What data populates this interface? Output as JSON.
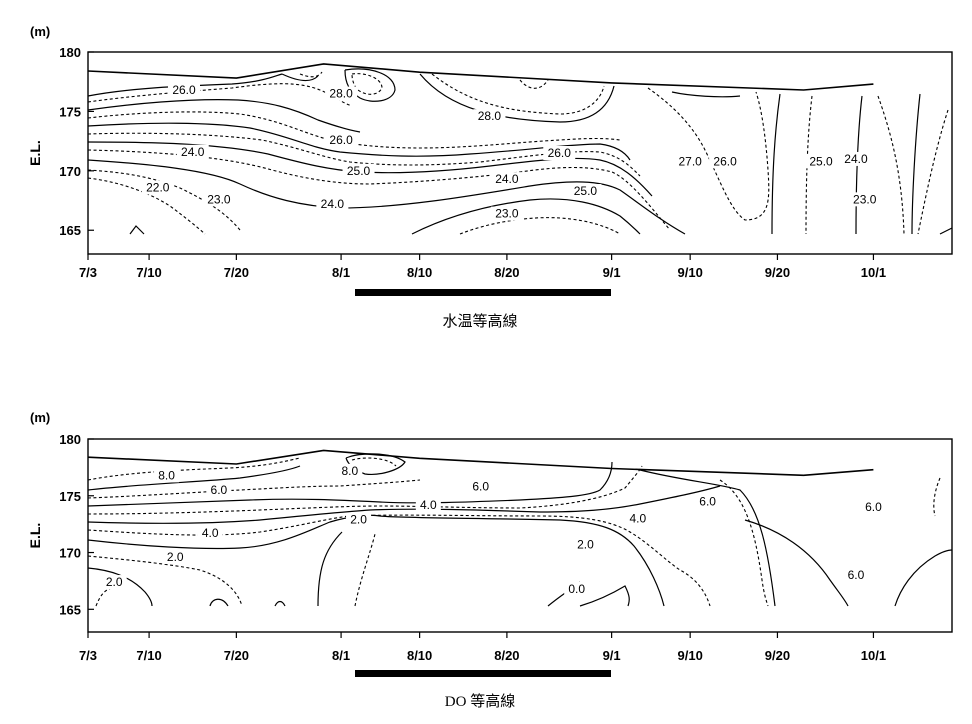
{
  "chart_data": [
    {
      "type": "contour",
      "title": "",
      "caption": "水温等高線",
      "y_unit": "(m)",
      "ylabel": "E.L.",
      "ylim": [
        163,
        180
      ],
      "yticks": [
        165,
        170,
        175,
        180
      ],
      "xticks": [
        "7/3",
        "7/10",
        "7/20",
        "8/1",
        "8/10",
        "8/20",
        "9/1",
        "9/10",
        "9/20",
        "10/1"
      ],
      "period_bar": {
        "start": "7/29",
        "end": "8/26"
      },
      "surface": [
        {
          "date": "7/3",
          "el": 178.4
        },
        {
          "date": "7/20",
          "el": 177.8
        },
        {
          "date": "7/30",
          "el": 179.0
        },
        {
          "date": "8/10",
          "el": 178.3
        },
        {
          "date": "9/1",
          "el": 177.4
        },
        {
          "date": "9/23",
          "el": 176.8
        },
        {
          "date": "10/1",
          "el": 177.3
        }
      ],
      "contour_labels": [
        {
          "text": "26.0",
          "date": "7/14",
          "el": 176.8
        },
        {
          "text": "28.0",
          "date": "8/1",
          "el": 176.5
        },
        {
          "text": "28.0",
          "date": "8/18",
          "el": 174.6
        },
        {
          "text": "26.0",
          "date": "8/1",
          "el": 172.6
        },
        {
          "text": "26.0",
          "date": "8/26",
          "el": 171.5
        },
        {
          "text": "24.0",
          "date": "7/15",
          "el": 171.6
        },
        {
          "text": "25.0",
          "date": "8/3",
          "el": 170.0
        },
        {
          "text": "24.0",
          "date": "8/20",
          "el": 169.3
        },
        {
          "text": "25.0",
          "date": "8/29",
          "el": 168.3
        },
        {
          "text": "27.0",
          "date": "9/10",
          "el": 170.8
        },
        {
          "text": "26.0",
          "date": "9/14",
          "el": 170.8
        },
        {
          "text": "25.0",
          "date": "9/25",
          "el": 170.8
        },
        {
          "text": "24.0",
          "date": "9/29",
          "el": 171.0
        },
        {
          "text": "22.0",
          "date": "7/11",
          "el": 168.6
        },
        {
          "text": "23.0",
          "date": "7/18",
          "el": 167.6
        },
        {
          "text": "24.0",
          "date": "7/31",
          "el": 167.2
        },
        {
          "text": "23.0",
          "date": "8/20",
          "el": 166.4
        },
        {
          "text": "23.0",
          "date": "9/30",
          "el": 167.6
        }
      ]
    },
    {
      "type": "contour",
      "title": "",
      "caption": "DO 等高線",
      "y_unit": "(m)",
      "ylabel": "E.L.",
      "ylim": [
        163,
        180
      ],
      "yticks": [
        165,
        170,
        175,
        180
      ],
      "xticks": [
        "7/3",
        "7/10",
        "7/20",
        "8/1",
        "8/10",
        "8/20",
        "9/1",
        "9/10",
        "9/20",
        "10/1"
      ],
      "period_bar": {
        "start": "7/29",
        "end": "8/26"
      },
      "surface": [
        {
          "date": "7/3",
          "el": 178.4
        },
        {
          "date": "7/20",
          "el": 177.8
        },
        {
          "date": "7/30",
          "el": 179.0
        },
        {
          "date": "8/10",
          "el": 178.3
        },
        {
          "date": "9/1",
          "el": 177.4
        },
        {
          "date": "9/23",
          "el": 176.8
        },
        {
          "date": "10/1",
          "el": 177.3
        }
      ],
      "contour_labels": [
        {
          "text": "8.0",
          "date": "7/12",
          "el": 176.8
        },
        {
          "text": "8.0",
          "date": "8/2",
          "el": 177.2
        },
        {
          "text": "6.0",
          "date": "7/18",
          "el": 175.5
        },
        {
          "text": "6.0",
          "date": "8/17",
          "el": 175.8
        },
        {
          "text": "6.0",
          "date": "9/12",
          "el": 174.5
        },
        {
          "text": "6.0",
          "date": "10/1",
          "el": 174.0
        },
        {
          "text": "4.0",
          "date": "8/11",
          "el": 174.2
        },
        {
          "text": "4.0",
          "date": "9/4",
          "el": 173.0
        },
        {
          "text": "4.0",
          "date": "7/17",
          "el": 171.7
        },
        {
          "text": "2.0",
          "date": "8/3",
          "el": 172.9
        },
        {
          "text": "2.0",
          "date": "8/29",
          "el": 170.7
        },
        {
          "text": "2.0",
          "date": "7/13",
          "el": 169.6
        },
        {
          "text": "2.0",
          "date": "7/6",
          "el": 167.4
        },
        {
          "text": "0.0",
          "date": "8/28",
          "el": 166.8
        },
        {
          "text": "6.0",
          "date": "9/29",
          "el": 168.0
        }
      ]
    }
  ]
}
